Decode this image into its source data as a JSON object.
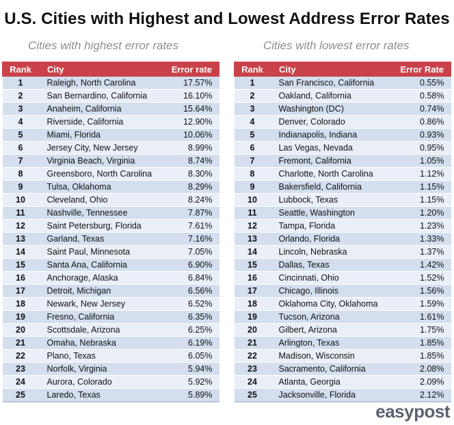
{
  "title": "U.S. Cities with Highest and Lowest Address Error Rates",
  "left": {
    "subtitle": "Cities with highest error rates",
    "headers": {
      "rank": "Rank",
      "city": "City",
      "rate": "Error rate"
    },
    "rows": [
      {
        "rank": "1",
        "city": "Raleigh, North Carolina",
        "rate": "17.57%"
      },
      {
        "rank": "2",
        "city": "San Bernardino, California",
        "rate": "16.10%"
      },
      {
        "rank": "3",
        "city": "Anaheim, California",
        "rate": "15.64%"
      },
      {
        "rank": "4",
        "city": "Riverside, California",
        "rate": "12.90%"
      },
      {
        "rank": "5",
        "city": "Miami, Florida",
        "rate": "10.06%"
      },
      {
        "rank": "6",
        "city": "Jersey City, New Jersey",
        "rate": "8.99%"
      },
      {
        "rank": "7",
        "city": "Virginia Beach, Virginia",
        "rate": "8.74%"
      },
      {
        "rank": "8",
        "city": "Greensboro, North Carolina",
        "rate": "8.30%"
      },
      {
        "rank": "9",
        "city": "Tulsa, Oklahoma",
        "rate": "8.29%"
      },
      {
        "rank": "10",
        "city": "Cleveland, Ohio",
        "rate": "8.24%"
      },
      {
        "rank": "11",
        "city": "Nashville, Tennessee",
        "rate": "7.87%"
      },
      {
        "rank": "12",
        "city": "Saint Petersburg, Florida",
        "rate": "7.61%"
      },
      {
        "rank": "13",
        "city": "Garland, Texas",
        "rate": "7.16%"
      },
      {
        "rank": "14",
        "city": "Saint Paul, Minnesota",
        "rate": "7.05%"
      },
      {
        "rank": "15",
        "city": "Santa Ana, California",
        "rate": "6.90%"
      },
      {
        "rank": "16",
        "city": "Anchorage, Alaska",
        "rate": "6.84%"
      },
      {
        "rank": "17",
        "city": "Detroit, Michigan",
        "rate": "6.56%"
      },
      {
        "rank": "18",
        "city": "Newark, New Jersey",
        "rate": "6.52%"
      },
      {
        "rank": "19",
        "city": "Fresno, California",
        "rate": "6.35%"
      },
      {
        "rank": "20",
        "city": "Scottsdale, Arizona",
        "rate": "6.25%"
      },
      {
        "rank": "21",
        "city": "Omaha, Nebraska",
        "rate": "6.19%"
      },
      {
        "rank": "22",
        "city": "Plano, Texas",
        "rate": "6.05%"
      },
      {
        "rank": "23",
        "city": "Norfolk, Virginia",
        "rate": "5.94%"
      },
      {
        "rank": "24",
        "city": "Aurora, Colorado",
        "rate": "5.92%"
      },
      {
        "rank": "25",
        "city": "Laredo, Texas",
        "rate": "5.89%"
      }
    ]
  },
  "right": {
    "subtitle": "Cities with lowest error rates",
    "headers": {
      "rank": "Rank",
      "city": "City",
      "rate": "Error Rate"
    },
    "rows": [
      {
        "rank": "1",
        "city": "San Francisco, California",
        "rate": "0.55%"
      },
      {
        "rank": "2",
        "city": "Oakland, California",
        "rate": "0.58%"
      },
      {
        "rank": "3",
        "city": "Washington (DC)",
        "rate": "0.74%"
      },
      {
        "rank": "4",
        "city": "Denver, Colorado",
        "rate": "0.86%"
      },
      {
        "rank": "5",
        "city": "Indianapolis, Indiana",
        "rate": "0.93%"
      },
      {
        "rank": "6",
        "city": "Las Vegas, Nevada",
        "rate": "0.95%"
      },
      {
        "rank": "7",
        "city": "Fremont, California",
        "rate": "1.05%"
      },
      {
        "rank": "8",
        "city": "Charlotte, North Carolina",
        "rate": "1.12%"
      },
      {
        "rank": "9",
        "city": "Bakersfield, California",
        "rate": "1.15%"
      },
      {
        "rank": "10",
        "city": "Lubbock, Texas",
        "rate": "1.15%"
      },
      {
        "rank": "11",
        "city": "Seattle, Washington",
        "rate": "1.20%"
      },
      {
        "rank": "12",
        "city": "Tampa, Florida",
        "rate": "1.23%"
      },
      {
        "rank": "13",
        "city": "Orlando, Florida",
        "rate": "1.33%"
      },
      {
        "rank": "14",
        "city": "Lincoln, Nebraska",
        "rate": "1.37%"
      },
      {
        "rank": "15",
        "city": "Dallas, Texas",
        "rate": "1.42%"
      },
      {
        "rank": "16",
        "city": "Cincinnati, Ohio",
        "rate": "1.52%"
      },
      {
        "rank": "17",
        "city": "Chicago, Illinois",
        "rate": "1.56%"
      },
      {
        "rank": "18",
        "city": "Oklahoma City, Oklahoma",
        "rate": "1.59%"
      },
      {
        "rank": "19",
        "city": "Tucson, Arizona",
        "rate": "1.61%"
      },
      {
        "rank": "20",
        "city": "Gilbert, Arizona",
        "rate": "1.75%"
      },
      {
        "rank": "21",
        "city": "Arlington, Texas",
        "rate": "1.85%"
      },
      {
        "rank": "22",
        "city": "Madison, Wisconsin",
        "rate": "1.85%"
      },
      {
        "rank": "23",
        "city": "Sacramento, California",
        "rate": "2.08%"
      },
      {
        "rank": "24",
        "city": "Atlanta, Georgia",
        "rate": "2.09%"
      },
      {
        "rank": "25",
        "city": "Jacksonville, Florida",
        "rate": "2.12%"
      }
    ]
  },
  "logo": "easypost",
  "colors": {
    "header_bg": "#c9424a",
    "row_odd": "#d3deee",
    "row_even": "#e9eef7",
    "subtitle": "#8f8f8f",
    "logo": "#5a6270"
  }
}
